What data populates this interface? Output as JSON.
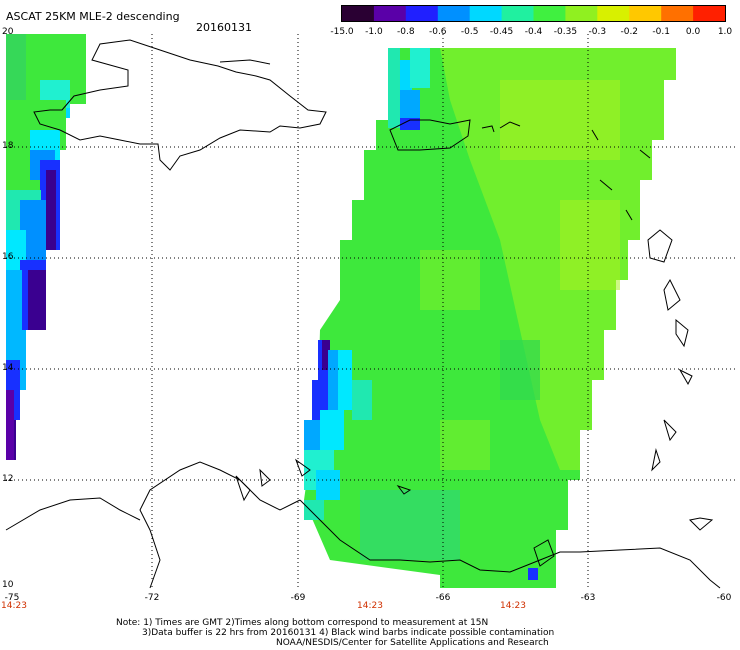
{
  "header": {
    "title": "ASCAT 25KM MLE-2 descending",
    "date": "20160131"
  },
  "colorbar": {
    "labels": [
      "-15.0",
      "-1.0",
      "-0.8",
      "-0.6",
      "-0.5",
      "-0.45",
      "-0.4",
      "-0.35",
      "-0.3",
      "-0.2",
      "-0.1",
      "0.0",
      "1.0"
    ],
    "colors": [
      "#2a0033",
      "#5a00a8",
      "#2020ff",
      "#0090ff",
      "#00d8ff",
      "#20f0a0",
      "#40f040",
      "#90f020",
      "#d8f000",
      "#ffc800",
      "#ff7000",
      "#ff2000"
    ]
  },
  "axes": {
    "lat_labels": [
      "20",
      "18",
      "16",
      "14",
      "12",
      "10"
    ],
    "lon_labels": [
      "-75",
      "-72",
      "-69",
      "-66",
      "-63",
      "-60"
    ],
    "times": [
      "14:23",
      "14:23",
      "14:23"
    ]
  },
  "note": {
    "line1": "Note: 1) Times are GMT 2)Times along bottom correspond to measurement at 15N",
    "line2": "3)Data buffer is 22 hrs from 20160131 4) Black wind barbs indicate possible contamination",
    "line3": "NOAA/NESDIS/Center for Satellite Applications and Research"
  },
  "swath": {
    "colors": {
      "green": "#3ee83c",
      "light_green": "#7af02a",
      "yellow_green": "#a8f020",
      "cyan": "#00e8ff",
      "sky": "#00a8ff",
      "blue": "#1830ff",
      "purple": "#3a0090",
      "teal": "#20e8b0"
    }
  }
}
